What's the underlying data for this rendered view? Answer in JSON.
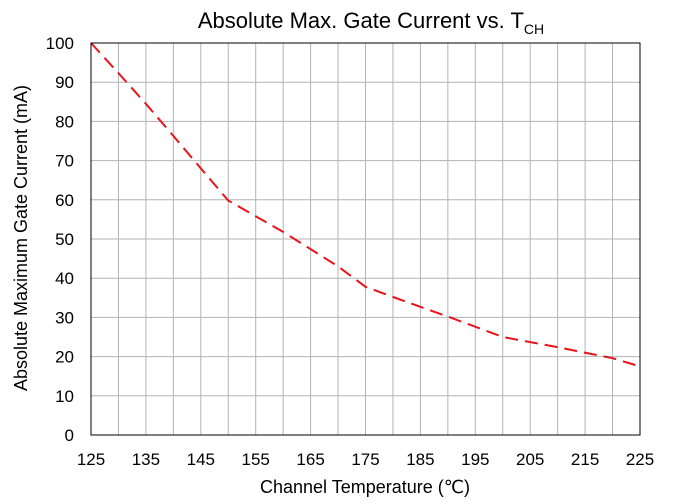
{
  "chart_data": {
    "type": "line",
    "title": "Absolute Max. Gate Current vs. T",
    "title_subscript": "CH",
    "xlabel": "Channel Temperature (℃)",
    "ylabel": "Absolute Maximum Gate Current (mA)",
    "xlim": [
      125,
      225
    ],
    "ylim": [
      0,
      100
    ],
    "x_ticks": [
      125,
      135,
      145,
      155,
      165,
      175,
      185,
      195,
      205,
      215,
      225
    ],
    "y_ticks": [
      0,
      10,
      20,
      30,
      40,
      50,
      60,
      70,
      80,
      90,
      100
    ],
    "grid": true,
    "legend": "none",
    "series": [
      {
        "color": "#e8141b",
        "line_style": "dashed",
        "x": [
          125,
          130,
          135,
          140,
          145,
          150,
          160,
          170,
          175,
          180,
          190,
          200,
          210,
          220,
          225
        ],
        "y": [
          100,
          92.3,
          84.5,
          76.3,
          68.0,
          59.8,
          51.8,
          43.0,
          37.8,
          35.2,
          30.2,
          25.0,
          22.4,
          19.6,
          17.5
        ]
      }
    ],
    "colors": {
      "axis": "#000000",
      "grid": "#b3b3b3",
      "background": "#ffffff"
    }
  }
}
